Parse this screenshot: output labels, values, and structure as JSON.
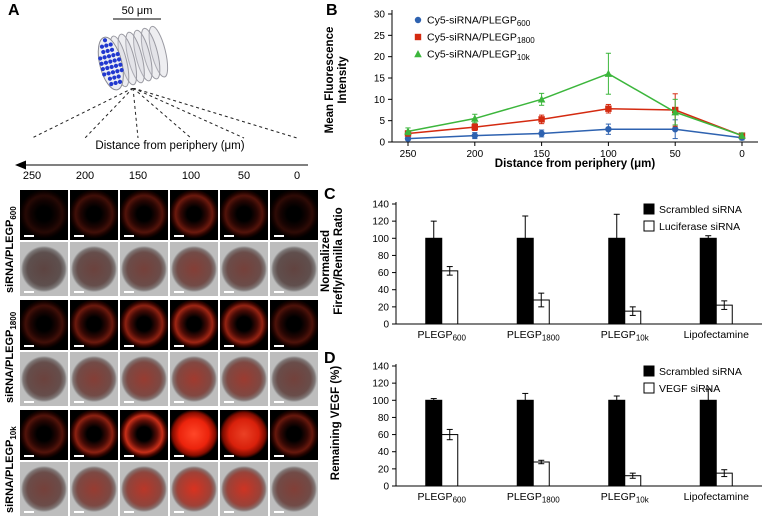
{
  "panels": {
    "a": {
      "label": "A",
      "scale_bar": "50 μm",
      "axis_title": "Distance from periphery (μm)",
      "ticks": [
        "250",
        "200",
        "150",
        "100",
        "50",
        "0"
      ],
      "rows": [
        {
          "label_main": "siRNA/PLEGP",
          "label_sub": "600"
        },
        {
          "label_main": "siRNA/PLEGP",
          "label_sub": "1800"
        },
        {
          "label_main": "siRNA/PLEGP",
          "label_sub": "10k"
        }
      ]
    },
    "b": {
      "label": "B",
      "xlabel": "Distance from periphery (μm)",
      "ylabel": "Mean Fluorescence Intensity"
    },
    "c": {
      "label": "C",
      "ylabel": "Normalized Firefly/Renilla Ratio"
    },
    "d": {
      "label": "D",
      "ylabel": "Remaining VEGF (%)"
    }
  },
  "chart_data": [
    {
      "id": "chartB",
      "type": "line",
      "panel": "B",
      "xlabel": "Distance from periphery (μm)",
      "ylabel": "Mean Fluorescence Intensity",
      "x": [
        250,
        200,
        150,
        100,
        50,
        0
      ],
      "x_ticks": [
        "250",
        "200",
        "150",
        "100",
        "50",
        "0"
      ],
      "ylim": [
        0,
        30
      ],
      "yticks": [
        0,
        5,
        10,
        15,
        20,
        25,
        30
      ],
      "legend_position": "top-left",
      "series": [
        {
          "name": "Cy5-siRNA/PLEGP600",
          "name_main": "Cy5-siRNA/PLEGP",
          "name_sub": "600",
          "color": "#2e62b0",
          "marker": "circle",
          "values": [
            0.8,
            1.5,
            2,
            3,
            3,
            1
          ],
          "errors": [
            0.4,
            0.7,
            0.8,
            1.2,
            2.2,
            0.5
          ]
        },
        {
          "name": "Cy5-siRNA/PLEGP1800",
          "name_main": "Cy5-siRNA/PLEGP",
          "name_sub": "1800",
          "color": "#d42a10",
          "marker": "square",
          "values": [
            2,
            3.5,
            5.3,
            7.8,
            7.5,
            1.5
          ],
          "errors": [
            0.6,
            0.8,
            1,
            1,
            3.8,
            0.6
          ]
        },
        {
          "name": "Cy5-siRNA/PLEGP10k",
          "name_main": "Cy5-siRNA/PLEGP",
          "name_sub": "10k",
          "color": "#3cb63c",
          "marker": "triangle",
          "values": [
            2.5,
            5.5,
            10,
            16,
            7,
            1.5
          ],
          "errors": [
            0.8,
            1,
            1.4,
            4.8,
            3,
            0.6
          ]
        }
      ]
    },
    {
      "id": "chartC",
      "type": "bar",
      "panel": "C",
      "ylabel": "Normalized Firefly/Renilla Ratio",
      "ylim": [
        0,
        140
      ],
      "yticks": [
        0,
        20,
        40,
        60,
        80,
        100,
        120,
        140
      ],
      "categories": [
        {
          "main": "PLEGP",
          "sub": "600"
        },
        {
          "main": "PLEGP",
          "sub": "1800"
        },
        {
          "main": "PLEGP",
          "sub": "10k"
        },
        {
          "main": "Lipofectamine",
          "sub": ""
        }
      ],
      "legend_position": "top-right",
      "series": [
        {
          "name": "Scrambled siRNA",
          "fill": "#000000",
          "values": [
            100,
            100,
            100,
            100
          ],
          "errors": [
            20,
            26,
            28,
            3
          ]
        },
        {
          "name": "Luciferase siRNA",
          "fill": "#ffffff",
          "values": [
            62,
            28,
            15,
            22
          ],
          "errors": [
            5,
            8,
            5,
            5
          ]
        }
      ]
    },
    {
      "id": "chartD",
      "type": "bar",
      "panel": "D",
      "ylabel": "Remaining VEGF (%)",
      "ylim": [
        0,
        140
      ],
      "yticks": [
        0,
        20,
        40,
        60,
        80,
        100,
        120,
        140
      ],
      "categories": [
        {
          "main": "PLEGP",
          "sub": "600"
        },
        {
          "main": "PLEGP",
          "sub": "1800"
        },
        {
          "main": "PLEGP",
          "sub": "10k"
        },
        {
          "main": "Lipofectamine",
          "sub": ""
        }
      ],
      "legend_position": "top-right",
      "series": [
        {
          "name": "Scrambled siRNA",
          "fill": "#000000",
          "values": [
            100,
            100,
            100,
            100
          ],
          "errors": [
            2,
            8,
            5,
            13
          ]
        },
        {
          "name": "VEGF siRNA",
          "fill": "#ffffff",
          "values": [
            60,
            28,
            12,
            15
          ],
          "errors": [
            6,
            2,
            3,
            4
          ]
        }
      ]
    }
  ]
}
